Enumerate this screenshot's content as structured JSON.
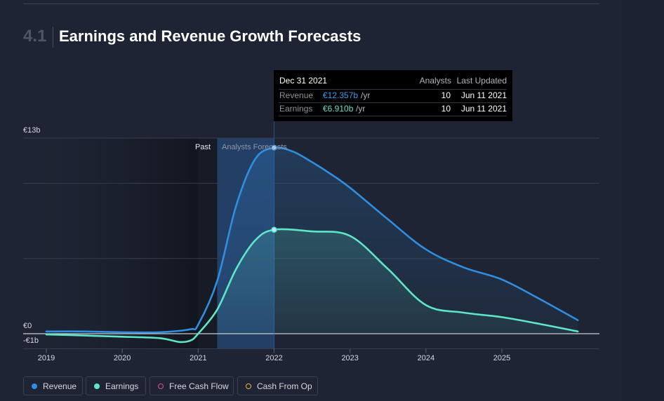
{
  "section": {
    "number": "4.1",
    "title": "Earnings and Revenue Growth Forecasts"
  },
  "tooltip": {
    "date": "Dec 31 2021",
    "col_analysts": "Analysts",
    "col_updated": "Last Updated",
    "rows": [
      {
        "label": "Revenue",
        "value": "€12.357b",
        "unit": "/yr",
        "analysts": "10",
        "updated": "Jun 11 2021"
      },
      {
        "label": "Earnings",
        "value": "€6.910b",
        "unit": "/yr",
        "analysts": "10",
        "updated": "Jun 11 2021"
      }
    ]
  },
  "regions": {
    "past_label": "Past",
    "forecast_label": "Analysts Forecasts"
  },
  "legend": {
    "items": [
      {
        "label": "Revenue",
        "color": "#2f8ee0",
        "filled": true
      },
      {
        "label": "Earnings",
        "color": "#5ee6c8",
        "filled": true
      },
      {
        "label": "Free Cash Flow",
        "color": "#d94f8a",
        "filled": false
      },
      {
        "label": "Cash From Op",
        "color": "#e6b84a",
        "filled": false
      }
    ]
  },
  "colors": {
    "revenue": "#2f8ee0",
    "earnings": "#5ee6c8",
    "forecast_band": "#2a5a9a",
    "past_band": "#151a24"
  },
  "chart_data": {
    "type": "line",
    "title": "Earnings and Revenue Growth Forecasts",
    "xlabel": "",
    "ylabel": "",
    "x_ticks": [
      "2019",
      "2020",
      "2021",
      "2022",
      "2023",
      "2024",
      "2025"
    ],
    "y_labels": [
      "€13b",
      "€0",
      "-€1b"
    ],
    "ylim": [
      -1,
      13
    ],
    "xlim": [
      2019,
      2026.3
    ],
    "past_start": 2021,
    "forecast_start": 2021.25,
    "highlight_x": 2022,
    "series": [
      {
        "name": "Revenue",
        "points": [
          [
            2019,
            0.15
          ],
          [
            2019.5,
            0.15
          ],
          [
            2020,
            0.1
          ],
          [
            2020.5,
            0.1
          ],
          [
            2020.9,
            0.3
          ],
          [
            2021,
            0.6
          ],
          [
            2021.25,
            3.5
          ],
          [
            2021.5,
            8.5
          ],
          [
            2021.75,
            11.6
          ],
          [
            2022,
            12.357
          ],
          [
            2022.25,
            12.1
          ],
          [
            2022.5,
            11.4
          ],
          [
            2022.75,
            10.6
          ],
          [
            2023,
            9.7
          ],
          [
            2023.5,
            7.6
          ],
          [
            2024,
            5.6
          ],
          [
            2024.5,
            4.4
          ],
          [
            2025,
            3.6
          ],
          [
            2025.5,
            2.3
          ],
          [
            2026,
            0.9
          ]
        ]
      },
      {
        "name": "Earnings",
        "points": [
          [
            2019,
            -0.05
          ],
          [
            2019.5,
            -0.12
          ],
          [
            2020,
            -0.2
          ],
          [
            2020.5,
            -0.3
          ],
          [
            2020.75,
            -0.55
          ],
          [
            2020.9,
            -0.45
          ],
          [
            2021,
            0.0
          ],
          [
            2021.25,
            1.6
          ],
          [
            2021.5,
            4.3
          ],
          [
            2021.75,
            6.2
          ],
          [
            2022,
            6.91
          ],
          [
            2022.5,
            6.8
          ],
          [
            2023,
            6.5
          ],
          [
            2023.5,
            4.3
          ],
          [
            2024,
            1.9
          ],
          [
            2024.5,
            1.4
          ],
          [
            2025,
            1.1
          ],
          [
            2025.5,
            0.65
          ],
          [
            2026,
            0.15
          ]
        ]
      }
    ]
  }
}
